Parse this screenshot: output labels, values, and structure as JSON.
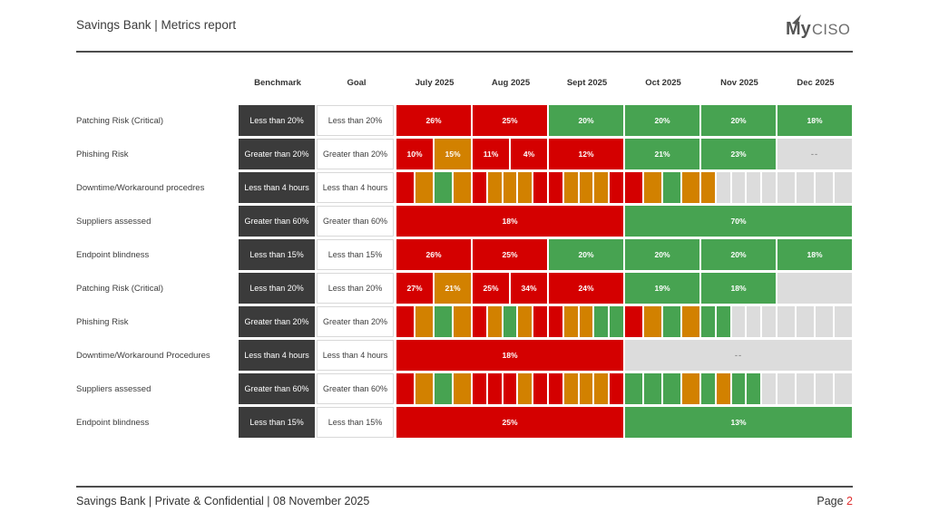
{
  "page": {
    "title": "Savings Bank | Metrics report",
    "footer_left": "Savings Bank | Private & Confidential | 08 November 2025",
    "footer_page_label": "Page ",
    "footer_page_number": "2"
  },
  "logo": {
    "bold": "My",
    "light": "CISO"
  },
  "colors": {
    "red": "#d40000",
    "orange": "#d28100",
    "green": "#47a351",
    "gray": "#dcdcdc",
    "benchmark_bg": "#3b3b3b",
    "page_number": "#e03131"
  },
  "table": {
    "columns": [
      "Benchmark",
      "Goal",
      "July 2025",
      "Aug 2025",
      "Sept 2025",
      "Oct 2025",
      "Nov 2025",
      "Dec 2025"
    ],
    "rows": [
      {
        "label": "Patching Risk (Critical)",
        "benchmark": "Less than 20%",
        "goal": "Less than 20%",
        "months": [
          {
            "span": 1,
            "cells": [
              {
                "c": "red",
                "t": "26%"
              }
            ]
          },
          {
            "span": 1,
            "cells": [
              {
                "c": "red",
                "t": "25%"
              }
            ]
          },
          {
            "span": 1,
            "cells": [
              {
                "c": "green",
                "t": "20%"
              }
            ]
          },
          {
            "span": 1,
            "cells": [
              {
                "c": "green",
                "t": "20%"
              }
            ]
          },
          {
            "span": 1,
            "cells": [
              {
                "c": "green",
                "t": "20%"
              }
            ]
          },
          {
            "span": 1,
            "cells": [
              {
                "c": "green",
                "t": "18%"
              }
            ]
          }
        ]
      },
      {
        "label": "Phishing Risk",
        "benchmark": "Greater than 20%",
        "goal": "Greater than 20%",
        "months": [
          {
            "span": 1,
            "cells": [
              {
                "c": "red",
                "t": "10%"
              },
              {
                "c": "orange",
                "t": "15%"
              }
            ]
          },
          {
            "span": 1,
            "cells": [
              {
                "c": "red",
                "t": "11%"
              },
              {
                "c": "red",
                "t": "4%"
              }
            ]
          },
          {
            "span": 1,
            "cells": [
              {
                "c": "red",
                "t": "12%"
              }
            ]
          },
          {
            "span": 1,
            "cells": [
              {
                "c": "green",
                "t": "21%"
              }
            ]
          },
          {
            "span": 1,
            "cells": [
              {
                "c": "green",
                "t": "23%"
              }
            ]
          },
          {
            "span": 1,
            "cells": [
              {
                "c": "gray",
                "t": "--"
              }
            ]
          }
        ]
      },
      {
        "label": "Downtime/Workaround procedres",
        "benchmark": "Less than 4 hours",
        "goal": "Less than 4 hours",
        "months": [
          {
            "span": 1,
            "cells": [
              {
                "c": "red"
              },
              {
                "c": "orange"
              },
              {
                "c": "green"
              },
              {
                "c": "orange"
              }
            ]
          },
          {
            "span": 1,
            "cells": [
              {
                "c": "red"
              },
              {
                "c": "orange"
              },
              {
                "c": "orange"
              },
              {
                "c": "orange"
              },
              {
                "c": "red"
              }
            ]
          },
          {
            "span": 1,
            "cells": [
              {
                "c": "red"
              },
              {
                "c": "orange"
              },
              {
                "c": "orange"
              },
              {
                "c": "orange"
              },
              {
                "c": "red"
              }
            ]
          },
          {
            "span": 1,
            "cells": [
              {
                "c": "red"
              },
              {
                "c": "orange"
              },
              {
                "c": "green"
              },
              {
                "c": "orange"
              }
            ]
          },
          {
            "span": 1,
            "cells": [
              {
                "c": "orange"
              },
              {
                "c": "gray"
              },
              {
                "c": "gray"
              },
              {
                "c": "gray"
              },
              {
                "c": "gray"
              }
            ]
          },
          {
            "span": 1,
            "cells": [
              {
                "c": "gray"
              },
              {
                "c": "gray"
              },
              {
                "c": "gray"
              },
              {
                "c": "gray"
              }
            ]
          }
        ]
      },
      {
        "label": "Suppliers assessed",
        "benchmark": "Greater than 60%",
        "goal": "Greater than 60%",
        "months": [
          {
            "span": 3,
            "cells": [
              {
                "c": "red",
                "t": "18%"
              }
            ]
          },
          {
            "span": 3,
            "cells": [
              {
                "c": "green",
                "t": "70%"
              }
            ]
          }
        ]
      },
      {
        "label": "Endpoint blindness",
        "benchmark": "Less than 15%",
        "goal": "Less than 15%",
        "months": [
          {
            "span": 1,
            "cells": [
              {
                "c": "red",
                "t": "26%"
              }
            ]
          },
          {
            "span": 1,
            "cells": [
              {
                "c": "red",
                "t": "25%"
              }
            ]
          },
          {
            "span": 1,
            "cells": [
              {
                "c": "green",
                "t": "20%"
              }
            ]
          },
          {
            "span": 1,
            "cells": [
              {
                "c": "green",
                "t": "20%"
              }
            ]
          },
          {
            "span": 1,
            "cells": [
              {
                "c": "green",
                "t": "20%"
              }
            ]
          },
          {
            "span": 1,
            "cells": [
              {
                "c": "green",
                "t": "18%"
              }
            ]
          }
        ]
      },
      {
        "label": "Patching Risk (Critical)",
        "benchmark": "Less than 20%",
        "goal": "Less than 20%",
        "months": [
          {
            "span": 1,
            "cells": [
              {
                "c": "red",
                "t": "27%"
              },
              {
                "c": "orange",
                "t": "21%"
              }
            ]
          },
          {
            "span": 1,
            "cells": [
              {
                "c": "red",
                "t": "25%"
              },
              {
                "c": "red",
                "t": "34%"
              }
            ]
          },
          {
            "span": 1,
            "cells": [
              {
                "c": "red",
                "t": "24%"
              }
            ]
          },
          {
            "span": 1,
            "cells": [
              {
                "c": "green",
                "t": "19%"
              }
            ]
          },
          {
            "span": 1,
            "cells": [
              {
                "c": "green",
                "t": "18%"
              }
            ]
          },
          {
            "span": 1,
            "cells": [
              {
                "c": "gray"
              }
            ]
          }
        ]
      },
      {
        "label": "Phishing Risk",
        "benchmark": "Greater than 20%",
        "goal": "Greater than 20%",
        "months": [
          {
            "span": 1,
            "cells": [
              {
                "c": "red"
              },
              {
                "c": "orange"
              },
              {
                "c": "green"
              },
              {
                "c": "orange"
              }
            ]
          },
          {
            "span": 1,
            "cells": [
              {
                "c": "red"
              },
              {
                "c": "orange"
              },
              {
                "c": "green"
              },
              {
                "c": "orange"
              },
              {
                "c": "red"
              }
            ]
          },
          {
            "span": 1,
            "cells": [
              {
                "c": "red"
              },
              {
                "c": "orange"
              },
              {
                "c": "orange"
              },
              {
                "c": "green"
              },
              {
                "c": "green"
              }
            ]
          },
          {
            "span": 1,
            "cells": [
              {
                "c": "red"
              },
              {
                "c": "orange"
              },
              {
                "c": "green"
              },
              {
                "c": "orange"
              }
            ]
          },
          {
            "span": 1,
            "cells": [
              {
                "c": "green"
              },
              {
                "c": "green"
              },
              {
                "c": "gray"
              },
              {
                "c": "gray"
              },
              {
                "c": "gray"
              }
            ]
          },
          {
            "span": 1,
            "cells": [
              {
                "c": "gray"
              },
              {
                "c": "gray"
              },
              {
                "c": "gray"
              },
              {
                "c": "gray"
              }
            ]
          }
        ]
      },
      {
        "label": "Downtime/Workaround Procedures",
        "benchmark": "Less than 4 hours",
        "goal": "Less than 4 hours",
        "months": [
          {
            "span": 3,
            "cells": [
              {
                "c": "red",
                "t": "18%"
              }
            ]
          },
          {
            "span": 3,
            "cells": [
              {
                "c": "gray",
                "t": "--"
              }
            ]
          }
        ]
      },
      {
        "label": "Suppliers assessed",
        "benchmark": "Greater than 60%",
        "goal": "Greater than 60%",
        "months": [
          {
            "span": 1,
            "cells": [
              {
                "c": "red"
              },
              {
                "c": "orange"
              },
              {
                "c": "green"
              },
              {
                "c": "orange"
              }
            ]
          },
          {
            "span": 1,
            "cells": [
              {
                "c": "red"
              },
              {
                "c": "red"
              },
              {
                "c": "red"
              },
              {
                "c": "orange"
              },
              {
                "c": "red"
              }
            ]
          },
          {
            "span": 1,
            "cells": [
              {
                "c": "red"
              },
              {
                "c": "orange"
              },
              {
                "c": "orange"
              },
              {
                "c": "orange"
              },
              {
                "c": "red"
              }
            ]
          },
          {
            "span": 1,
            "cells": [
              {
                "c": "green"
              },
              {
                "c": "green"
              },
              {
                "c": "green"
              },
              {
                "c": "orange"
              }
            ]
          },
          {
            "span": 1,
            "cells": [
              {
                "c": "green"
              },
              {
                "c": "orange"
              },
              {
                "c": "green"
              },
              {
                "c": "green"
              },
              {
                "c": "gray"
              }
            ]
          },
          {
            "span": 1,
            "cells": [
              {
                "c": "gray"
              },
              {
                "c": "gray"
              },
              {
                "c": "gray"
              },
              {
                "c": "gray"
              }
            ]
          }
        ]
      },
      {
        "label": "Endpoint blindness",
        "benchmark": "Less than 15%",
        "goal": "Less than 15%",
        "months": [
          {
            "span": 3,
            "cells": [
              {
                "c": "red",
                "t": "25%"
              }
            ]
          },
          {
            "span": 3,
            "cells": [
              {
                "c": "green",
                "t": "13%"
              }
            ]
          }
        ]
      }
    ]
  }
}
